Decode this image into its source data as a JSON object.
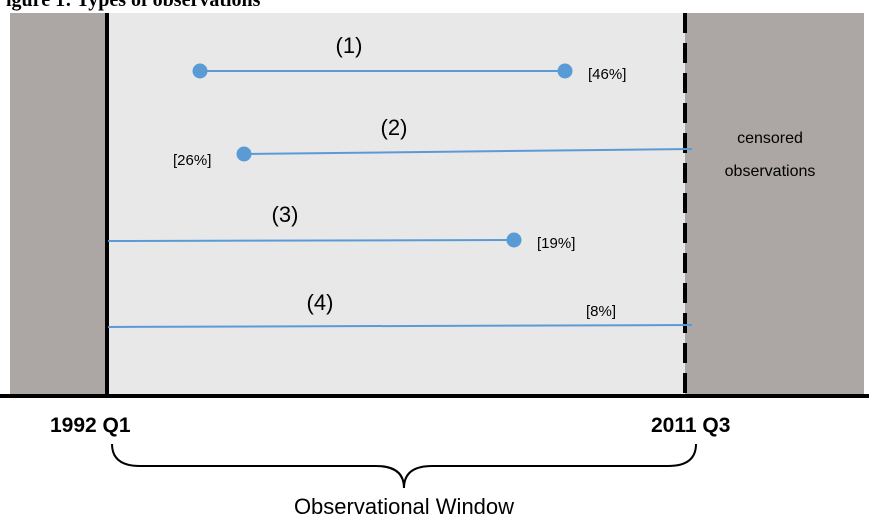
{
  "title_fragment": "igure 1: Types of observations",
  "colors": {
    "outside_region": "#aca6a4",
    "window_region": "#e8e8e8",
    "line": "#5b9bd5",
    "point": "#5b9bd5",
    "axis": "#000000"
  },
  "axis": {
    "start_label": "1992 Q1",
    "end_label": "2011 Q3",
    "brace_label": "Observational Window"
  },
  "note": {
    "line1": "censored",
    "line2": "observations"
  },
  "observations": [
    {
      "label": "(1)",
      "share": "[46%]",
      "starts_inside_window": true,
      "ends_inside_window": true
    },
    {
      "label": "(2)",
      "share": "[26%]",
      "starts_inside_window": true,
      "ends_inside_window": false
    },
    {
      "label": "(3)",
      "share": "[19%]",
      "starts_inside_window": false,
      "ends_inside_window": true
    },
    {
      "label": "(4)",
      "share": "[8%]",
      "starts_inside_window": false,
      "ends_inside_window": false
    }
  ]
}
